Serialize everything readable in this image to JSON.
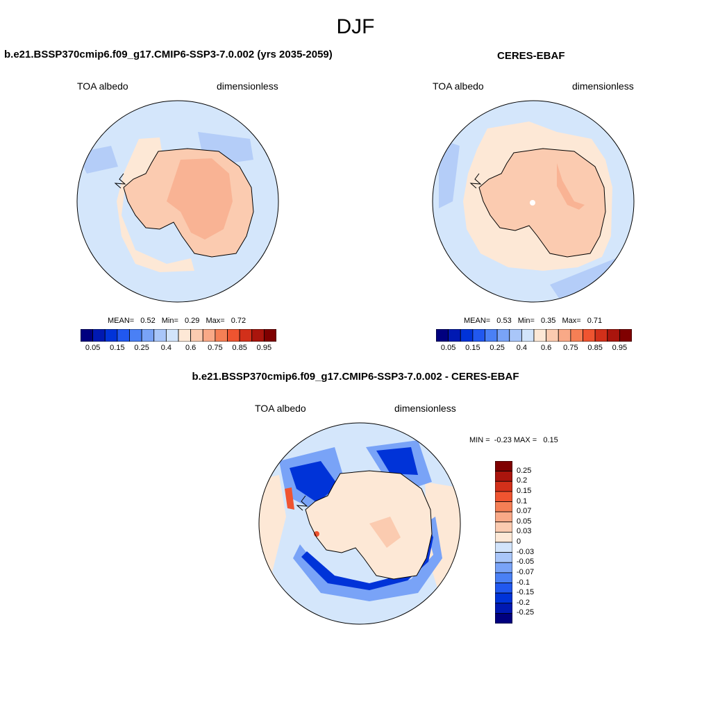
{
  "title": "DJF",
  "panel1": {
    "title": "b.e21.BSSP370cmip6.f09_g17.CMIP6-SSP3-7.0.002 (yrs 2035-2059)",
    "var_label": "TOA albedo",
    "units": "dimensionless",
    "mean_label": "MEAN=",
    "mean": "0.52",
    "min_label": "Min=",
    "min": "0.29",
    "max_label": "Max=",
    "max": "0.72"
  },
  "panel2": {
    "title": "CERES-EBAF",
    "var_label": "TOA albedo",
    "units": "dimensionless",
    "mean_label": "MEAN=",
    "mean": "0.53",
    "min_label": "Min=",
    "min": "0.35",
    "max_label": "Max=",
    "max": "0.71"
  },
  "panel3": {
    "title": "b.e21.BSSP370cmip6.f09_g17.CMIP6-SSP3-7.0.002 - CERES-EBAF",
    "var_label": "TOA albedo",
    "units": "dimensionless",
    "minmax_text": "MIN =  -0.23 MAX =   0.15"
  },
  "colorbar_abs": {
    "colors": [
      "#00007f",
      "#0019b2",
      "#0033d8",
      "#2158ef",
      "#4a80f5",
      "#79a3f7",
      "#a9c6f9",
      "#d2e4fb",
      "#fde8d6",
      "#fbcbb0",
      "#f9a987",
      "#f57f55",
      "#ef5430",
      "#d2301a",
      "#aa150d",
      "#7f0000"
    ],
    "ticks": [
      "0.05",
      "0.15",
      "0.25",
      "0.4",
      "0.6",
      "0.75",
      "0.85",
      "0.95"
    ]
  },
  "colorbar_diff": {
    "colors": [
      "#7f0000",
      "#aa150d",
      "#d2301a",
      "#ef5430",
      "#f57f55",
      "#f9a987",
      "#fbcbb0",
      "#fde8d6",
      "#d2e4fb",
      "#a9c6f9",
      "#79a3f7",
      "#4a80f5",
      "#2158ef",
      "#0033d8",
      "#0019b2",
      "#00007f"
    ],
    "ticks": [
      "0.25",
      "0.2",
      "0.15",
      "0.1",
      "0.07",
      "0.05",
      "0.03",
      "0",
      "-0.03",
      "-0.05",
      "-0.07",
      "-0.1",
      "-0.15",
      "-0.2",
      "-0.25"
    ]
  },
  "map_colors": {
    "ocean": "#d4e6fb",
    "ocean_mid": "#b4cdf8",
    "ice_light": "#fde8d6",
    "land": "#fbcbb0",
    "land_dark": "#f9b394",
    "diff_neutral": "#d4e6fb",
    "diff_pos": "#fde8d6",
    "diff_pos2": "#fbcbb0",
    "diff_neg": "#79a3f7",
    "diff_neg2": "#2158ef",
    "diff_neg3": "#0033d8",
    "diff_red": "#ef5430",
    "coast": "#000000"
  }
}
